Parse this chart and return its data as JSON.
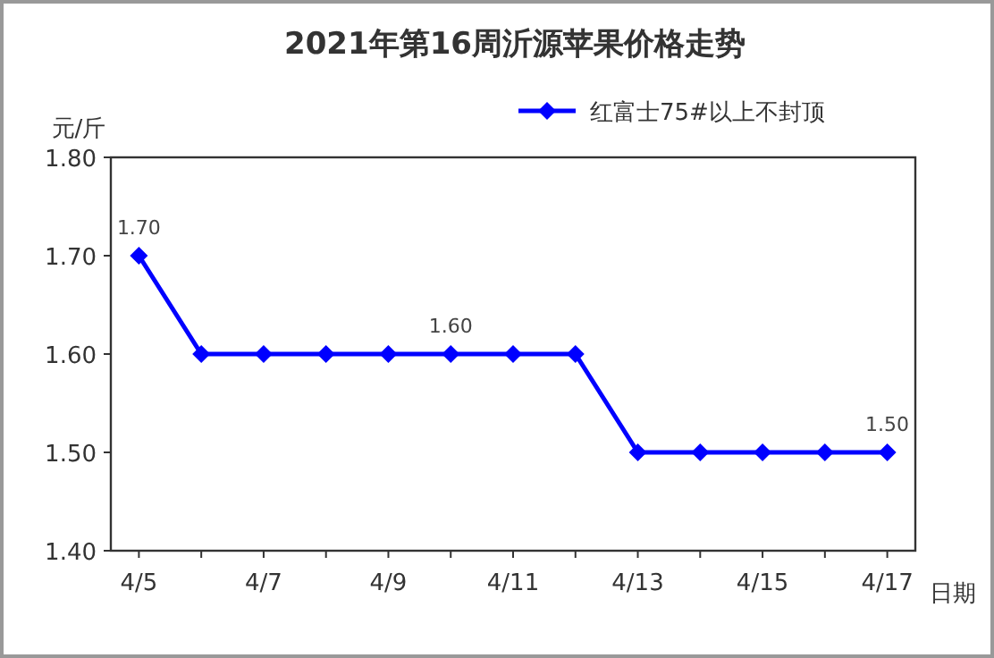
{
  "chart_data": {
    "type": "line",
    "title": "2021年第16周沂源苹果价格走势",
    "xlabel": "日期",
    "ylabel": "元/斤",
    "categories": [
      "4/5",
      null,
      "4/7",
      null,
      "4/9",
      null,
      "4/11",
      null,
      "4/13",
      null,
      "4/15",
      null,
      "4/17"
    ],
    "series": [
      {
        "name": "红富士75#以上不封顶",
        "color": "#0000ff",
        "values": [
          1.7,
          1.6,
          1.6,
          1.6,
          1.6,
          1.6,
          1.6,
          1.6,
          1.5,
          1.5,
          1.5,
          1.5,
          1.5
        ],
        "value_labels": [
          "1.70",
          null,
          null,
          null,
          null,
          "1.60",
          null,
          null,
          null,
          null,
          null,
          null,
          "1.50"
        ]
      }
    ],
    "ylim": [
      1.4,
      1.8
    ],
    "yticks": [
      "1.40",
      "1.50",
      "1.60",
      "1.70",
      "1.80"
    ],
    "marker": "diamond",
    "line_style": "solid",
    "legend": "top right",
    "grid": false
  }
}
